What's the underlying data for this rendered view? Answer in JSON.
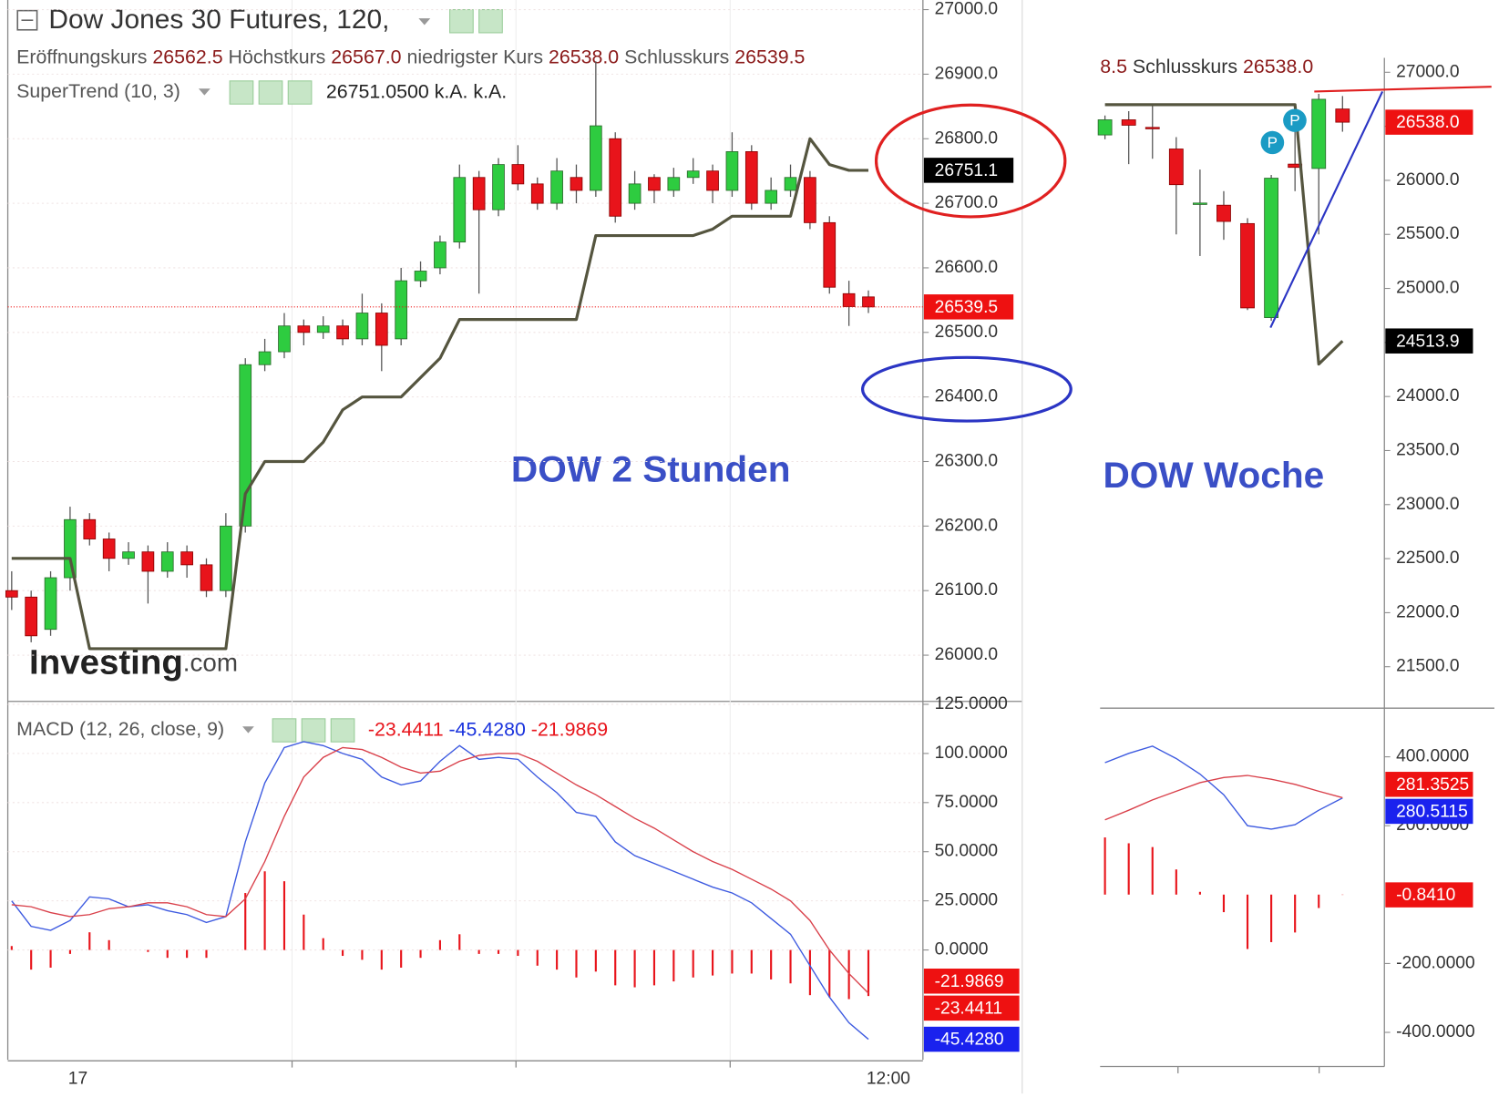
{
  "chart_data": [
    {
      "type": "candlestick",
      "title": "Dow Jones 30 Futures, 120,",
      "ohlc_legend": [
        {
          "name": "Eröffnungskurs",
          "value": 26562.5,
          "label": "26562.5"
        },
        {
          "name": "Höchstkurs",
          "value": 26567,
          "label": "26567.0"
        },
        {
          "name": "niedrigster Kurs",
          "value": 26538,
          "label": "26538.0"
        },
        {
          "name": "Schlusskurs",
          "value": 26539.5,
          "label": "26539.5"
        }
      ],
      "indicator_value": {
        "value": 26751.05,
        "label": "26751.0500"
      },
      "na_labels": [
        "k.A.",
        "k.A."
      ],
      "categories": [
        null,
        null,
        null,
        "17",
        null,
        null,
        null,
        null,
        null,
        null,
        null,
        null,
        null,
        null,
        null,
        null,
        null,
        null,
        null,
        null,
        null,
        null,
        null,
        null,
        null,
        null,
        null,
        null,
        null,
        null,
        null,
        null,
        null,
        null,
        null,
        null,
        null,
        null,
        null,
        null,
        null,
        null,
        null,
        null,
        "12:00"
      ],
      "open": [
        26100,
        26090,
        26040,
        26120,
        26210,
        26180,
        26150,
        26160,
        26130,
        26160,
        26140,
        26100,
        26200,
        26450,
        26470,
        26510,
        26500,
        26510,
        26490,
        26530,
        26490,
        26580,
        26600,
        26640,
        26740,
        26690,
        26760,
        26730,
        26700,
        26740,
        26720,
        26800,
        26700,
        26740,
        26720,
        26740,
        26750,
        26720,
        26780,
        26700,
        26720,
        26740,
        26670,
        26560,
        26555
      ],
      "high": [
        26130,
        26100,
        26130,
        26230,
        26220,
        26190,
        26175,
        26170,
        26175,
        26170,
        26150,
        26220,
        26460,
        26490,
        26530,
        26520,
        26525,
        26520,
        26560,
        26545,
        26600,
        26610,
        26650,
        26760,
        26750,
        26770,
        26790,
        26740,
        26770,
        26760,
        26920,
        26810,
        26750,
        26745,
        26755,
        26770,
        26760,
        26810,
        26790,
        26740,
        26760,
        26750,
        26680,
        26580,
        26565
      ],
      "low": [
        26070,
        26020,
        26030,
        26100,
        26170,
        26130,
        26140,
        26080,
        26120,
        26120,
        26090,
        26090,
        26190,
        26440,
        26460,
        26480,
        26490,
        26480,
        26480,
        26440,
        26480,
        26570,
        26590,
        26630,
        26560,
        26680,
        26720,
        26690,
        26690,
        26700,
        26710,
        26670,
        26690,
        26700,
        26710,
        26730,
        26700,
        26710,
        26690,
        26690,
        26710,
        26660,
        26560,
        26510,
        26530
      ],
      "close": [
        26090,
        26030,
        26120,
        26210,
        26180,
        26150,
        26160,
        26130,
        26160,
        26140,
        26100,
        26200,
        26450,
        26470,
        26510,
        26500,
        26510,
        26490,
        26530,
        26480,
        26580,
        26595,
        26640,
        26740,
        26690,
        26760,
        26730,
        26700,
        26750,
        26720,
        26820,
        26680,
        26730,
        26720,
        26740,
        26750,
        26720,
        26780,
        26700,
        26720,
        26740,
        26670,
        26570,
        26540,
        26539.5
      ],
      "up_color": "#2ecc40",
      "down_color": "#e8141b",
      "series": [
        {
          "name": "SuperTrend (10, 3)",
          "color": "#55553f",
          "values": [
            26150,
            26150,
            26150,
            26150,
            26010,
            26010,
            26010,
            26010,
            26010,
            26010,
            26010,
            26010,
            26250,
            26300,
            26300,
            26300,
            26330,
            26380,
            26400,
            26400,
            26400,
            26430,
            26460,
            26520,
            26520,
            26520,
            26520,
            26520,
            26520,
            26520,
            26650,
            26650,
            26650,
            26650,
            26650,
            26650,
            26660,
            26680,
            26680,
            26680,
            26680,
            26800,
            26760,
            26751.05,
            26751.05
          ]
        }
      ],
      "ylim": [
        25928.4,
        27014.9
      ],
      "yticks": [
        {
          "value": 26000,
          "label": "26000.0"
        },
        {
          "value": 26100,
          "label": "26100.0"
        },
        {
          "value": 26200,
          "label": "26200.0"
        },
        {
          "value": 26300,
          "label": "26300.0"
        },
        {
          "value": 26400,
          "label": "26400.0"
        },
        {
          "value": 26500,
          "label": "26500.0"
        },
        {
          "value": 26600,
          "label": "26600.0"
        },
        {
          "value": 26700,
          "label": "26700.0"
        },
        {
          "value": 26800,
          "label": "26800.0"
        },
        {
          "value": 26900,
          "label": "26900.0"
        },
        {
          "value": 27000,
          "label": "27000.0"
        }
      ],
      "grid": true,
      "price_tags": [
        {
          "value": 26751.1,
          "label": "26751.1",
          "color": "#000000"
        },
        {
          "value": 26539.5,
          "label": "26539.5",
          "color": "#ee1111",
          "line": true
        }
      ],
      "annotation": "DOW 2 Stunden",
      "watermark": {
        "name": "Investing",
        "suffix": ".com"
      }
    },
    {
      "type": "macd",
      "legend": "MACD (12, 26, close, 9)",
      "legend_values": [
        {
          "value": -23.4411,
          "label": "-23.4411",
          "color": "#e8141b"
        },
        {
          "value": -45.428,
          "label": "-45.4280",
          "color": "#1a33dd"
        },
        {
          "value": -21.9869,
          "label": "-21.9869",
          "color": "#e8141b"
        }
      ],
      "histogram": {
        "color": "#e8141b",
        "values": [
          2,
          -10,
          -9,
          -2,
          9,
          5,
          0,
          -1,
          -4,
          -4,
          -4,
          0,
          29,
          40,
          35,
          18,
          6,
          -3,
          -5,
          -10,
          -9,
          -4,
          5,
          8,
          -2,
          -2,
          -3,
          -8,
          -10,
          -14,
          -11,
          -18,
          -19,
          -18,
          -16,
          -14,
          -13,
          -12,
          -12,
          -15,
          -17,
          -23,
          -24,
          -25,
          -23.4411
        ]
      },
      "lines": [
        {
          "color": "#3d5ae0",
          "values": [
            25,
            12,
            10,
            15,
            27,
            26,
            22,
            23,
            20,
            18,
            14,
            17,
            55,
            85,
            103,
            106,
            104,
            100,
            97,
            88,
            84,
            86,
            96,
            104,
            97,
            98,
            97,
            88,
            80,
            70,
            68,
            55,
            48,
            44,
            40,
            36,
            32,
            29,
            24,
            16,
            8,
            -8,
            -24,
            -37,
            -45.428
          ]
        },
        {
          "color": "#d9404a",
          "values": [
            23,
            22,
            19,
            17,
            18,
            21,
            22,
            24,
            24,
            22,
            18,
            17,
            26,
            45,
            68,
            88,
            98,
            103,
            102,
            98,
            93,
            90,
            91,
            96,
            99,
            100,
            100,
            96,
            90,
            84,
            79,
            73,
            67,
            62,
            56,
            50,
            45,
            41,
            36,
            31,
            25,
            15,
            0,
            -12,
            -21.9869
          ]
        }
      ],
      "ylim": [
        -55.9,
        125.5
      ],
      "yticks": [
        {
          "value": 0,
          "label": "0.0000"
        },
        {
          "value": 25,
          "label": "25.0000"
        },
        {
          "value": 50,
          "label": "50.0000"
        },
        {
          "value": 75,
          "label": "75.0000"
        },
        {
          "value": 100,
          "label": "100.0000"
        },
        {
          "value": 125,
          "label": "125.0000"
        }
      ],
      "grid": true,
      "price_tags": [
        {
          "value": -21.9869,
          "label": "-21.9869",
          "color": "#ee1111"
        },
        {
          "value": -23.4411,
          "label": "-23.4411",
          "color": "#ee1111"
        },
        {
          "value": -45.428,
          "label": "-45.4280",
          "color": "#1a22ee"
        }
      ]
    },
    {
      "type": "candlestick",
      "header_fragment": "8.5",
      "close_legend": {
        "name": "Schlusskurs",
        "value": 26538,
        "label": "26538.0"
      },
      "open": [
        26420,
        26560,
        26490,
        26290,
        25780,
        25770,
        25600,
        24730,
        26150,
        26110,
        26660
      ],
      "high": [
        26600,
        26640,
        26700,
        26400,
        26100,
        25900,
        25650,
        26050,
        26520,
        26800,
        26780
      ],
      "low": [
        26380,
        26150,
        26200,
        25500,
        25300,
        25450,
        24800,
        24700,
        25900,
        25500,
        26450
      ],
      "close": [
        26560,
        26510,
        26480,
        25960,
        25790,
        25620,
        24820,
        26020,
        26120,
        26750,
        26538
      ],
      "up_color": "#2ecc40",
      "down_color": "#e8141b",
      "series": [
        {
          "color": "#55553f",
          "values": [
            26700,
            26700,
            26700,
            26700,
            26700,
            26700,
            26700,
            26700,
            26700,
            24300,
            24513.9
          ]
        }
      ],
      "ylim": [
        21116.7,
        27133.7
      ],
      "yticks": [
        {
          "value": 21500,
          "label": "21500.0"
        },
        {
          "value": 22000,
          "label": "22000.0"
        },
        {
          "value": 22500,
          "label": "22500.0"
        },
        {
          "value": 23000,
          "label": "23000.0"
        },
        {
          "value": 23500,
          "label": "23500.0"
        },
        {
          "value": 24000,
          "label": "24000.0"
        },
        {
          "value": 24500,
          "label": "24500.0"
        },
        {
          "value": 25000,
          "label": "25000.0"
        },
        {
          "value": 25500,
          "label": "25500.0"
        },
        {
          "value": 26000,
          "label": "26000.0"
        },
        {
          "value": 26500,
          "label": "26500.0"
        },
        {
          "value": 27000,
          "label": "27000.0"
        }
      ],
      "grid": false,
      "price_tags": [
        {
          "value": 26538,
          "label": "26538.0",
          "color": "#ee1111"
        },
        {
          "value": 24513.9,
          "label": "24513.9",
          "color": "#000000"
        }
      ],
      "markers": [
        "P",
        "P"
      ],
      "annotation": "DOW Woche"
    },
    {
      "type": "macd",
      "histogram": {
        "color": "#e8141b",
        "values": [
          166,
          149,
          138,
          73,
          8,
          -51,
          -158,
          -138,
          -110,
          -39,
          -0.841
        ]
      },
      "lines": [
        {
          "color": "#3d5ae0",
          "values": [
            383,
            410,
            431,
            395,
            350,
            290,
            200,
            190,
            203,
            245,
            280.5115
          ]
        },
        {
          "color": "#d9404a",
          "values": [
            217,
            245,
            275,
            300,
            325,
            340,
            346,
            335,
            320,
            300,
            281.3525
          ]
        }
      ],
      "ylim": [
        -493.7,
        541.3
      ],
      "yticks": [
        {
          "value": -400,
          "label": "-400.0000"
        },
        {
          "value": -200,
          "label": "-200.0000"
        },
        {
          "value": 200,
          "label": "200.0000"
        },
        {
          "value": 400,
          "label": "400.0000"
        }
      ],
      "grid": false,
      "price_tags": [
        {
          "value": 281.3525,
          "label": "281.3525",
          "color": "#ee1111"
        },
        {
          "value": 280.5115,
          "label": "280.5115",
          "color": "#1a22ee"
        },
        {
          "value": -0.841,
          "label": "-0.8410",
          "color": "#ee1111"
        }
      ]
    }
  ]
}
